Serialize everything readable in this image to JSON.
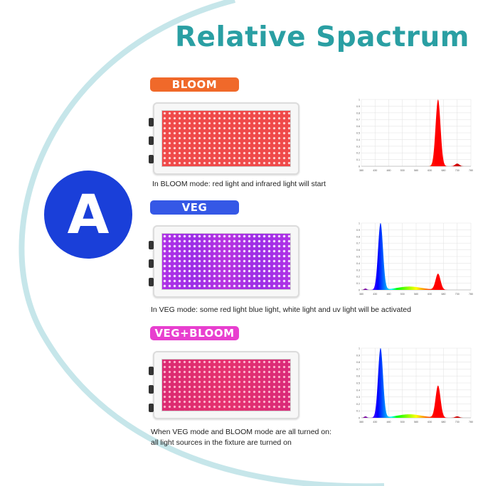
{
  "title": "Relative Spactrum",
  "badge": {
    "letter": "A",
    "color": "#1a3fd9"
  },
  "modes": [
    {
      "label": "BLOOM",
      "color": "#f0692a",
      "caption_lines": [
        "In BLOOM mode: red light and infrared light will start"
      ]
    },
    {
      "label": "VEG",
      "color": "#3558e6",
      "caption_lines": [
        "In VEG mode: some red light blue light, white light and uv light will be activated"
      ]
    },
    {
      "label": "VEG+BLOOM",
      "color": "#e83fcf",
      "caption_lines": [
        "When VEG mode and BLOOM mode are all turned on:",
        "all light sources in the fixture are turned on"
      ]
    }
  ],
  "chart_data": [
    {
      "type": "area",
      "x_ticks": [
        "380",
        "430",
        "480",
        "530",
        "580",
        "630",
        "680",
        "730",
        "780"
      ],
      "y_ticks": [
        "0",
        "0.1",
        "0.2",
        "0.3",
        "0.4",
        "0.5",
        "0.6",
        "0.7",
        "0.8",
        "0.9",
        "1"
      ],
      "xlim": [
        380,
        780
      ],
      "ylim": [
        0,
        1
      ],
      "peaks": [
        {
          "center": 660,
          "height": 1.0,
          "width": 9
        },
        {
          "center": 730,
          "height": 0.04,
          "width": 8
        }
      ],
      "grid": true
    },
    {
      "type": "area",
      "x_ticks": [
        "380",
        "430",
        "480",
        "530",
        "580",
        "630",
        "680",
        "730",
        "780"
      ],
      "y_ticks": [
        "0",
        "0.1",
        "0.2",
        "0.3",
        "0.4",
        "0.5",
        "0.6",
        "0.7",
        "0.8",
        "0.9",
        "1"
      ],
      "xlim": [
        380,
        780
      ],
      "ylim": [
        0,
        1
      ],
      "peaks": [
        {
          "center": 395,
          "height": 0.02,
          "width": 5
        },
        {
          "center": 450,
          "height": 1.0,
          "width": 9
        },
        {
          "center": 555,
          "height": 0.05,
          "width": 45
        },
        {
          "center": 660,
          "height": 0.24,
          "width": 9
        }
      ],
      "grid": true
    },
    {
      "type": "area",
      "x_ticks": [
        "380",
        "430",
        "480",
        "530",
        "580",
        "630",
        "680",
        "730",
        "780"
      ],
      "y_ticks": [
        "0",
        "0.1",
        "0.2",
        "0.3",
        "0.4",
        "0.5",
        "0.6",
        "0.7",
        "0.8",
        "0.9",
        "1"
      ],
      "xlim": [
        380,
        780
      ],
      "ylim": [
        0,
        1
      ],
      "peaks": [
        {
          "center": 395,
          "height": 0.02,
          "width": 5
        },
        {
          "center": 450,
          "height": 1.0,
          "width": 9
        },
        {
          "center": 555,
          "height": 0.05,
          "width": 45
        },
        {
          "center": 660,
          "height": 0.46,
          "width": 9
        },
        {
          "center": 730,
          "height": 0.02,
          "width": 8
        }
      ],
      "grid": true
    }
  ]
}
